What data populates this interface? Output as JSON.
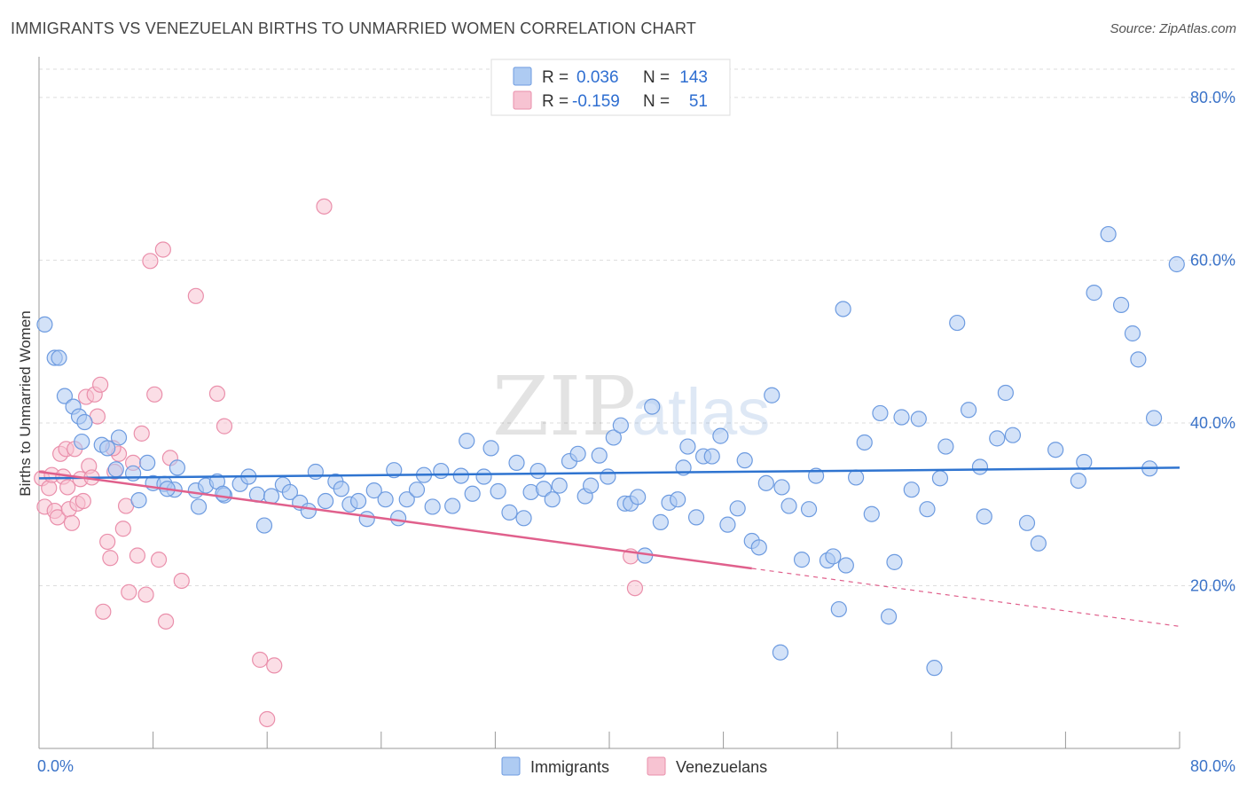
{
  "title": "IMMIGRANTS VS VENEZUELAN BIRTHS TO UNMARRIED WOMEN CORRELATION CHART",
  "source": "Source: ZipAtlas.com",
  "watermark": {
    "zip": "ZIP",
    "atlas": "atlas"
  },
  "colors": {
    "immigrants_fill": "#aecbf2",
    "immigrants_stroke": "#6d9be0",
    "immigrants_line": "#2f74d0",
    "venezuelans_fill": "#f7c3d2",
    "venezuelans_stroke": "#ea8fab",
    "venezuelans_line": "#e0608c",
    "tick_label": "#3b73c8",
    "grid": "#dddddd"
  },
  "legend": {
    "r_label": "R =",
    "n_label": "N =",
    "rows": [
      {
        "series": "Immigrants",
        "r": "0.036",
        "n": "143"
      },
      {
        "series": "Venezuelans",
        "r": "-0.159",
        "n": "51"
      }
    ]
  },
  "chart_data": {
    "type": "scatter",
    "title": "IMMIGRANTS VS VENEZUELAN BIRTHS TO UNMARRIED WOMEN CORRELATION CHART",
    "xlabel": "",
    "ylabel": "Births to Unmarried Women",
    "xlim": [
      0,
      80
    ],
    "ylim": [
      0,
      85
    ],
    "x_tick_labels": [
      "0.0%",
      "80.0%"
    ],
    "y_tick_labels": [
      "20.0%",
      "40.0%",
      "60.0%",
      "80.0%"
    ],
    "y_ticks": [
      20,
      40,
      60,
      80
    ],
    "grid": true,
    "legend_position": "top-center",
    "series": [
      {
        "name": "Immigrants",
        "r": 0.036,
        "n": 143,
        "trend": {
          "x": [
            0,
            80
          ],
          "y": [
            33.2,
            34.5
          ],
          "dashed_from": null
        },
        "points": [
          [
            0.4,
            52.1
          ],
          [
            1.1,
            48.0
          ],
          [
            1.4,
            48.0
          ],
          [
            1.8,
            43.3
          ],
          [
            2.4,
            42.0
          ],
          [
            2.8,
            40.8
          ],
          [
            3.2,
            40.1
          ],
          [
            3.0,
            37.7
          ],
          [
            4.4,
            37.3
          ],
          [
            4.8,
            36.9
          ],
          [
            5.6,
            38.2
          ],
          [
            5.4,
            34.3
          ],
          [
            7.0,
            30.5
          ],
          [
            6.6,
            33.8
          ],
          [
            7.6,
            35.1
          ],
          [
            8.0,
            32.6
          ],
          [
            8.8,
            32.5
          ],
          [
            9.7,
            34.5
          ],
          [
            9.5,
            31.8
          ],
          [
            11.2,
            29.7
          ],
          [
            11.0,
            31.7
          ],
          [
            11.7,
            32.3
          ],
          [
            12.5,
            32.8
          ],
          [
            13.0,
            31.1
          ],
          [
            14.1,
            32.5
          ],
          [
            14.7,
            33.4
          ],
          [
            15.3,
            31.2
          ],
          [
            15.8,
            27.4
          ],
          [
            16.3,
            31.0
          ],
          [
            17.1,
            32.4
          ],
          [
            17.6,
            31.5
          ],
          [
            18.3,
            30.2
          ],
          [
            18.9,
            29.2
          ],
          [
            19.4,
            34.0
          ],
          [
            20.1,
            30.4
          ],
          [
            20.8,
            32.8
          ],
          [
            21.2,
            31.9
          ],
          [
            21.8,
            30.0
          ],
          [
            22.4,
            30.4
          ],
          [
            23.0,
            28.2
          ],
          [
            23.5,
            31.7
          ],
          [
            24.3,
            30.6
          ],
          [
            24.9,
            34.2
          ],
          [
            25.2,
            28.3
          ],
          [
            25.8,
            30.6
          ],
          [
            26.5,
            31.8
          ],
          [
            27.0,
            33.6
          ],
          [
            27.6,
            29.7
          ],
          [
            28.2,
            34.1
          ],
          [
            29.0,
            29.8
          ],
          [
            29.6,
            33.5
          ],
          [
            30.0,
            37.8
          ],
          [
            30.4,
            31.3
          ],
          [
            31.2,
            33.4
          ],
          [
            31.7,
            36.9
          ],
          [
            32.2,
            31.6
          ],
          [
            33.0,
            29.0
          ],
          [
            33.5,
            35.1
          ],
          [
            34.0,
            28.3
          ],
          [
            34.5,
            31.5
          ],
          [
            35.0,
            34.1
          ],
          [
            35.4,
            31.9
          ],
          [
            36.0,
            30.6
          ],
          [
            36.5,
            32.3
          ],
          [
            37.2,
            35.3
          ],
          [
            37.8,
            36.2
          ],
          [
            38.3,
            31.0
          ],
          [
            38.7,
            32.3
          ],
          [
            39.3,
            36.0
          ],
          [
            39.9,
            33.4
          ],
          [
            40.3,
            38.2
          ],
          [
            40.8,
            39.7
          ],
          [
            41.1,
            30.1
          ],
          [
            41.5,
            30.1
          ],
          [
            42.0,
            30.9
          ],
          [
            42.5,
            23.7
          ],
          [
            43.0,
            42.0
          ],
          [
            43.6,
            27.8
          ],
          [
            44.2,
            30.2
          ],
          [
            44.8,
            30.6
          ],
          [
            45.2,
            34.5
          ],
          [
            45.5,
            37.1
          ],
          [
            46.1,
            28.4
          ],
          [
            46.6,
            35.9
          ],
          [
            47.2,
            35.9
          ],
          [
            47.8,
            38.4
          ],
          [
            48.3,
            27.5
          ],
          [
            49.0,
            29.5
          ],
          [
            49.5,
            35.4
          ],
          [
            50.0,
            25.5
          ],
          [
            50.5,
            24.7
          ],
          [
            51.0,
            32.6
          ],
          [
            51.4,
            43.4
          ],
          [
            52.1,
            32.1
          ],
          [
            52.6,
            29.8
          ],
          [
            53.5,
            23.2
          ],
          [
            54.0,
            29.4
          ],
          [
            54.5,
            33.5
          ],
          [
            55.3,
            23.1
          ],
          [
            55.7,
            23.6
          ],
          [
            56.1,
            17.1
          ],
          [
            56.6,
            22.5
          ],
          [
            57.3,
            33.3
          ],
          [
            57.9,
            37.6
          ],
          [
            58.4,
            28.8
          ],
          [
            59.0,
            41.2
          ],
          [
            59.6,
            16.2
          ],
          [
            60.0,
            22.9
          ],
          [
            60.5,
            40.7
          ],
          [
            61.2,
            31.8
          ],
          [
            61.7,
            40.5
          ],
          [
            62.3,
            29.4
          ],
          [
            62.8,
            9.9
          ],
          [
            63.2,
            33.2
          ],
          [
            63.6,
            37.1
          ],
          [
            64.4,
            52.3
          ],
          [
            65.2,
            41.6
          ],
          [
            66.0,
            34.6
          ],
          [
            66.3,
            28.5
          ],
          [
            67.2,
            38.1
          ],
          [
            67.8,
            43.7
          ],
          [
            68.3,
            38.5
          ],
          [
            69.3,
            27.7
          ],
          [
            70.1,
            25.2
          ],
          [
            71.3,
            36.7
          ],
          [
            72.9,
            32.9
          ],
          [
            73.3,
            35.2
          ],
          [
            74.0,
            56.0
          ],
          [
            75.0,
            63.2
          ],
          [
            75.9,
            54.5
          ],
          [
            76.7,
            51.0
          ],
          [
            77.1,
            47.8
          ],
          [
            77.9,
            34.4
          ],
          [
            78.2,
            40.6
          ],
          [
            79.8,
            59.5
          ],
          [
            52.0,
            11.8
          ],
          [
            56.4,
            54.0
          ],
          [
            9.0,
            31.9
          ],
          [
            12.9,
            31.3
          ]
        ]
      },
      {
        "name": "Venezuelans",
        "r": -0.159,
        "n": 51,
        "trend": {
          "x": [
            0,
            80
          ],
          "y": [
            34.0,
            15.0
          ],
          "solid_until_x": 50
        },
        "points": [
          [
            0.2,
            33.2
          ],
          [
            0.4,
            29.7
          ],
          [
            0.7,
            32.0
          ],
          [
            0.9,
            33.6
          ],
          [
            1.1,
            29.2
          ],
          [
            1.3,
            28.4
          ],
          [
            1.5,
            36.2
          ],
          [
            1.7,
            33.4
          ],
          [
            1.9,
            36.8
          ],
          [
            2.1,
            29.4
          ],
          [
            2.3,
            27.7
          ],
          [
            2.5,
            36.8
          ],
          [
            2.7,
            30.1
          ],
          [
            2.9,
            33.1
          ],
          [
            3.1,
            30.4
          ],
          [
            3.3,
            43.2
          ],
          [
            3.5,
            34.7
          ],
          [
            3.7,
            33.3
          ],
          [
            3.9,
            43.5
          ],
          [
            4.1,
            40.8
          ],
          [
            4.3,
            44.7
          ],
          [
            4.5,
            16.8
          ],
          [
            4.8,
            25.4
          ],
          [
            5.0,
            23.4
          ],
          [
            5.3,
            34.0
          ],
          [
            5.6,
            36.2
          ],
          [
            5.9,
            27.0
          ],
          [
            6.1,
            29.8
          ],
          [
            6.3,
            19.2
          ],
          [
            6.6,
            35.1
          ],
          [
            6.9,
            23.7
          ],
          [
            7.2,
            38.7
          ],
          [
            7.5,
            18.9
          ],
          [
            7.8,
            59.9
          ],
          [
            8.1,
            43.5
          ],
          [
            8.4,
            23.2
          ],
          [
            8.7,
            61.3
          ],
          [
            8.9,
            15.6
          ],
          [
            9.2,
            35.7
          ],
          [
            10.0,
            20.6
          ],
          [
            11.0,
            55.6
          ],
          [
            12.5,
            43.6
          ],
          [
            13.0,
            39.6
          ],
          [
            15.5,
            10.9
          ],
          [
            16.0,
            3.6
          ],
          [
            16.5,
            10.2
          ],
          [
            20.0,
            66.6
          ],
          [
            41.5,
            23.6
          ],
          [
            41.8,
            19.7
          ],
          [
            2.0,
            32.1
          ],
          [
            5.2,
            36.9
          ]
        ]
      }
    ]
  },
  "bottom_legend": [
    {
      "series": "Immigrants"
    },
    {
      "series": "Venezuelans"
    }
  ]
}
